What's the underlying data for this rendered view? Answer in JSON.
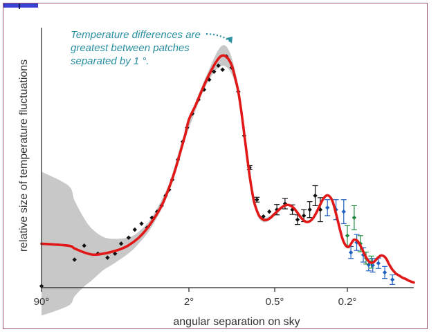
{
  "chart_data": {
    "type": "line",
    "title": "",
    "xlabel": "angular separation on sky",
    "ylabel": "relative size of temperature fluctuations",
    "x_scale": "log multipole (tick labels show angle)",
    "xlim": [
      2,
      2500
    ],
    "ylim": [
      0,
      6500
    ],
    "x_ticks": [
      {
        "value": 2,
        "label": "90°"
      },
      {
        "value": 90,
        "label": "2°"
      },
      {
        "value": 360,
        "label": "0.5°"
      },
      {
        "value": 900,
        "label": "0.2°"
      }
    ],
    "annotation": {
      "lines": [
        "Temperature differences are",
        "greatest between patches",
        "separated by 1 °."
      ],
      "color": "#2a8fa0"
    },
    "series": [
      {
        "kind": "model-curve",
        "color": "#e01818",
        "x": [
          2,
          2.5,
          3,
          4,
          5,
          6,
          8,
          10,
          12,
          15,
          20,
          25,
          30,
          40,
          50,
          60,
          70,
          80,
          90,
          100,
          110,
          120,
          130,
          140,
          150,
          160,
          170,
          180,
          190,
          200,
          210,
          220,
          230,
          240,
          250,
          260,
          280,
          300,
          320,
          340,
          360,
          380,
          400,
          420,
          440,
          460,
          480,
          500,
          520,
          540,
          560,
          580,
          600,
          620,
          640,
          660,
          680,
          700,
          720,
          740,
          760,
          780,
          800,
          820,
          840,
          860,
          880,
          900,
          920,
          940,
          960,
          980,
          1000,
          1050,
          1100,
          1150,
          1200,
          1250,
          1300,
          1350,
          1400,
          1450,
          1500,
          1550,
          1600,
          1650,
          1700,
          1750,
          1800,
          1850,
          1900,
          2000,
          2100,
          2200,
          2300,
          2400,
          2500
        ],
        "values": [
          1100,
          1050,
          980,
          880,
          830,
          830,
          870,
          920,
          970,
          1060,
          1240,
          1440,
          1650,
          2050,
          2500,
          2950,
          3400,
          3800,
          4200,
          4550,
          4900,
          5200,
          5450,
          5650,
          5780,
          5800,
          5720,
          5550,
          5250,
          4900,
          4400,
          3850,
          3300,
          2800,
          2400,
          2100,
          1800,
          1700,
          1700,
          1760,
          1850,
          1950,
          2030,
          2070,
          2050,
          1980,
          1870,
          1760,
          1680,
          1640,
          1660,
          1720,
          1820,
          1950,
          2080,
          2200,
          2280,
          2310,
          2280,
          2200,
          2050,
          1850,
          1650,
          1450,
          1270,
          1140,
          1060,
          1020,
          1020,
          1060,
          1120,
          1170,
          1200,
          1170,
          1050,
          900,
          760,
          660,
          620,
          640,
          700,
          760,
          800,
          800,
          770,
          700,
          600,
          520,
          450,
          400,
          350,
          300,
          250,
          220,
          180,
          150,
          130
        ]
      },
      {
        "kind": "uncertainty-band",
        "color": "#c8c8c8",
        "x": [
          2,
          2.5,
          3,
          4,
          5,
          7,
          10,
          15,
          20,
          30,
          50,
          80,
          120,
          160,
          200,
          250,
          300,
          400
        ],
        "half_width": [
          1800,
          1500,
          1200,
          850,
          650,
          420,
          300,
          200,
          150,
          120,
          110,
          110,
          120,
          260,
          130,
          90,
          60,
          40
        ]
      },
      {
        "kind": "points",
        "color": "#111111",
        "x": [
          2,
          3,
          4,
          6,
          8,
          10,
          12,
          15,
          18,
          22,
          26,
          30,
          35,
          40,
          45,
          50,
          55,
          65,
          75,
          85,
          95,
          105,
          115,
          125,
          135,
          145,
          155,
          165,
          180,
          200,
          220,
          240,
          270,
          300,
          330,
          370,
          410,
          450,
          480,
          520,
          560,
          600,
          640
        ],
        "values": [
          40,
          700,
          1050,
          850,
          750,
          850,
          1100,
          1250,
          1450,
          1600,
          1500,
          1750,
          1900,
          2050,
          2300,
          2450,
          2700,
          3200,
          3650,
          4000,
          4350,
          4700,
          4950,
          5200,
          5400,
          5550,
          5450,
          5780,
          5500,
          4900,
          3800,
          3000,
          2200,
          1780,
          1900,
          1950,
          2100,
          1950,
          1700,
          1800,
          1950,
          2300,
          1950
        ],
        "errors": [
          0,
          0,
          0,
          0,
          0,
          0,
          0,
          0,
          0,
          0,
          0,
          0,
          0,
          0,
          0,
          0,
          0,
          0,
          0,
          0,
          0,
          0,
          0,
          0,
          0,
          0,
          0,
          0,
          0,
          0,
          0,
          50,
          60,
          0,
          0,
          130,
          130,
          120,
          120,
          150,
          200,
          250,
          300
        ]
      },
      {
        "kind": "points",
        "color": "#2060c0",
        "x": [
          700,
          780,
          860,
          950,
          1040,
          1150,
          1250,
          1330,
          1450,
          1600,
          1800
        ],
        "values": [
          2000,
          1950,
          1900,
          880,
          1130,
          820,
          570,
          560,
          610,
          380,
          200
        ],
        "errors": [
          200,
          250,
          300,
          150,
          200,
          180,
          150,
          170,
          130,
          150,
          120
        ]
      },
      {
        "kind": "points",
        "color": "#208a40",
        "x": [
          900,
          1000,
          1100,
          1200,
          1300
        ],
        "values": [
          1300,
          1750,
          1100,
          740,
          640
        ],
        "errors": [
          250,
          300,
          200,
          150,
          150
        ]
      }
    ]
  }
}
